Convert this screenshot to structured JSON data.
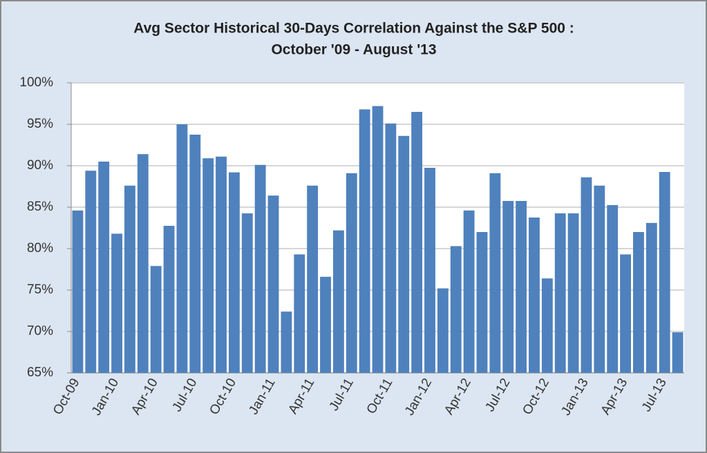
{
  "chart_data": {
    "type": "bar",
    "title": "Avg  Sector Historical 30-Days Correlation Against the S&P 500 :",
    "subtitle": "October '09 - August '13",
    "categories": [
      "Oct-09",
      null,
      null,
      "Jan-10",
      null,
      null,
      "Apr-10",
      null,
      null,
      "Jul-10",
      null,
      null,
      "Oct-10",
      null,
      null,
      "Jan-11",
      null,
      null,
      "Apr-11",
      null,
      null,
      "Jul-11",
      null,
      null,
      "Oct-11",
      null,
      null,
      "Jan-12",
      null,
      null,
      "Apr-12",
      null,
      null,
      "Jul-12",
      null,
      null,
      "Oct-12",
      null,
      null,
      "Jan-13",
      null,
      null,
      "Apr-13",
      null,
      null,
      "Jul-13",
      null
    ],
    "values": [
      84.6,
      89.4,
      90.5,
      81.8,
      87.6,
      91.4,
      77.9,
      82.75,
      95,
      93.75,
      90.9,
      91.1,
      89.2,
      84.25,
      90.1,
      86.4,
      72.4,
      79.3,
      87.6,
      76.6,
      82.2,
      89.1,
      96.8,
      97.2,
      95.1,
      93.6,
      96.5,
      89.75,
      75.2,
      80.3,
      84.6,
      82,
      89.1,
      85.75,
      85.75,
      83.75,
      76.4,
      84.25,
      84.25,
      88.6,
      87.6,
      85.25,
      79.3,
      82,
      83.1,
      89.25,
      69.9
    ],
    "color": "#4f81bd",
    "ylim": [
      65,
      100
    ],
    "yticks": [
      {
        "value": 65,
        "label": "65%"
      },
      {
        "value": 70,
        "label": "70%"
      },
      {
        "value": 75,
        "label": "75%"
      },
      {
        "value": 80,
        "label": "80%"
      },
      {
        "value": 85,
        "label": "85%"
      },
      {
        "value": 90,
        "label": "90%"
      },
      {
        "value": 95,
        "label": "95%"
      },
      {
        "value": 100,
        "label": "100%"
      }
    ],
    "grid": true
  }
}
